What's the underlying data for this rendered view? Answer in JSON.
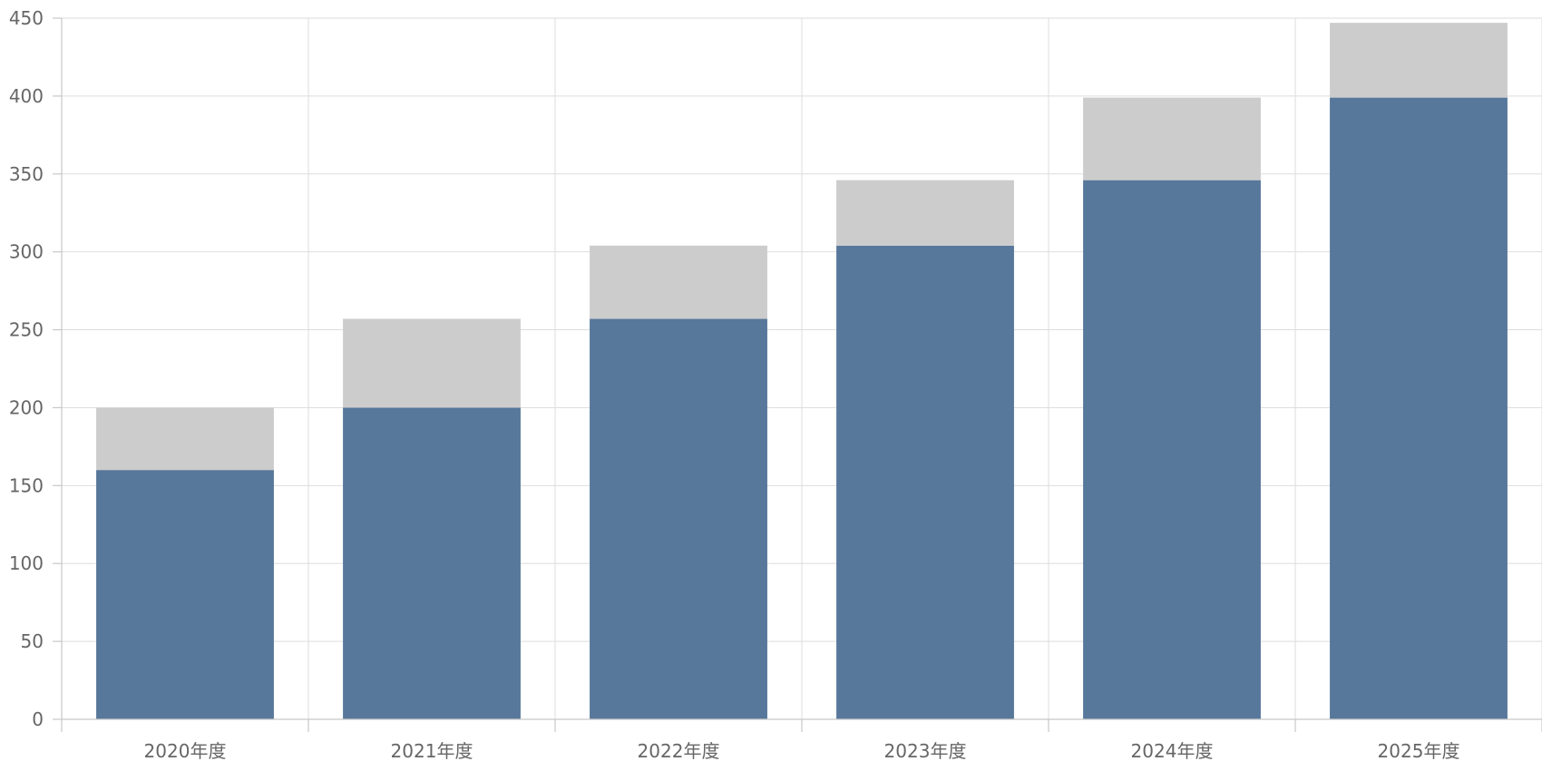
{
  "chart_data": {
    "type": "bar",
    "stacked": true,
    "categories": [
      "2020年度",
      "2021年度",
      "2022年度",
      "2023年度",
      "2024年度",
      "2025年度"
    ],
    "series": [
      {
        "color": "#57779b",
        "values": [
          160,
          200,
          257,
          304,
          346,
          399
        ]
      },
      {
        "color": "#cccccc",
        "values": [
          40,
          57,
          47,
          42,
          53,
          48
        ]
      }
    ],
    "y_ticks": [
      0,
      50,
      100,
      150,
      200,
      250,
      300,
      350,
      400,
      450
    ],
    "ylim": [
      0,
      450
    ],
    "grid": true,
    "title": "",
    "xlabel": "",
    "ylabel": "",
    "colors": {
      "grid": "#dddddd",
      "axis": "#c8c8c8",
      "text": "#666666"
    }
  }
}
